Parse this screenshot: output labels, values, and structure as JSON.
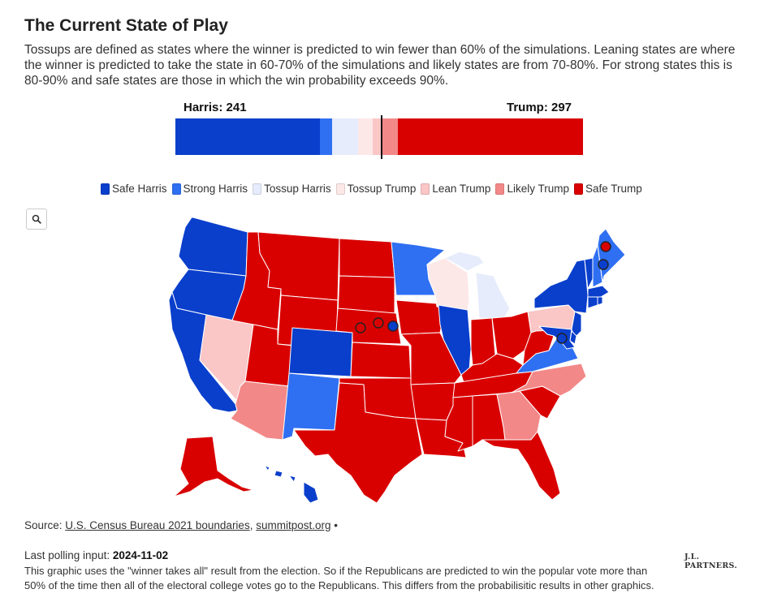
{
  "title": "The Current State of Play",
  "description": "Tossups are defined as states where the winner is predicted to win fewer than 60% of the simulations. Leaning states are where the winner is predicted to take the state in 60-70% of the simulations and likely states are from 70-80%. For strong states this is 80-90% and safe states are those in which the win probability exceeds 90%.",
  "tally": {
    "harris": "Harris: 241",
    "trump": "Trump: 297"
  },
  "colors": {
    "safe_harris": "#0a3fcc",
    "strong_harris": "#2f6ff2",
    "tossup_harris": "#e6ecfb",
    "tossup_trump": "#fde8e8",
    "lean_trump": "#fbc6c6",
    "likely_trump": "#f38888",
    "safe_trump": "#d90000"
  },
  "bar_segments": [
    {
      "category": "Safe Harris",
      "votes": 191,
      "color": "#0a3fcc"
    },
    {
      "category": "Strong Harris",
      "votes": 16,
      "color": "#2f6ff2"
    },
    {
      "category": "Tossup Harris",
      "votes": 34,
      "color": "#e6ecfb"
    },
    {
      "category": "Tossup Trump",
      "votes": 19,
      "color": "#fde8e8"
    },
    {
      "category": "Lean Trump",
      "votes": 12,
      "color": "#fbc6c6"
    },
    {
      "category": "Likely Trump",
      "votes": 22,
      "color": "#f38888"
    },
    {
      "category": "Safe Trump",
      "votes": 244,
      "color": "#d90000"
    }
  ],
  "legend": [
    {
      "label": "Safe Harris",
      "color": "#0a3fcc"
    },
    {
      "label": "Strong Harris",
      "color": "#2f6ff2"
    },
    {
      "label": "Tossup Harris",
      "color": "#e6ecfb"
    },
    {
      "label": "Tossup Trump",
      "color": "#fde8e8"
    },
    {
      "label": "Lean Trump",
      "color": "#fbc6c6"
    },
    {
      "label": "Likely Trump",
      "color": "#f38888"
    },
    {
      "label": "Safe Trump",
      "color": "#d90000"
    }
  ],
  "search_icon": "search-icon",
  "states": {
    "WA": "safe_harris",
    "OR": "safe_harris",
    "CA": "safe_harris",
    "NV": "lean_trump",
    "ID": "safe_trump",
    "MT": "safe_trump",
    "WY": "safe_trump",
    "UT": "safe_trump",
    "AZ": "likely_trump",
    "CO": "safe_harris",
    "NM": "strong_harris",
    "ND": "safe_trump",
    "SD": "safe_trump",
    "NE": "safe_trump",
    "KS": "safe_trump",
    "OK": "safe_trump",
    "TX": "safe_trump",
    "MN": "strong_harris",
    "IA": "safe_trump",
    "MO": "safe_trump",
    "AR": "safe_trump",
    "LA": "safe_trump",
    "WI": "tossup_trump",
    "IL": "safe_harris",
    "MI": "tossup_harris",
    "IN": "safe_trump",
    "OH": "safe_trump",
    "KY": "safe_trump",
    "TN": "safe_trump",
    "MS": "safe_trump",
    "AL": "safe_trump",
    "GA": "likely_trump",
    "FL": "safe_trump",
    "SC": "safe_trump",
    "NC": "likely_trump",
    "VA": "strong_harris",
    "WV": "safe_trump",
    "PA": "lean_trump",
    "NY": "safe_harris",
    "VT": "safe_harris",
    "NH": "strong_harris",
    "ME": "strong_harris",
    "MA": "safe_harris",
    "CT": "safe_harris",
    "RI": "safe_harris",
    "NJ": "safe_harris",
    "DE": "safe_harris",
    "MD": "safe_harris",
    "AK": "safe_trump",
    "HI": "safe_harris"
  },
  "districts": [
    {
      "id": "NE-1",
      "color": "safe_trump"
    },
    {
      "id": "NE-2",
      "color": "safe_harris"
    },
    {
      "id": "NE-3",
      "color": "safe_trump"
    },
    {
      "id": "ME-1",
      "color": "safe_harris"
    },
    {
      "id": "ME-2",
      "color": "safe_trump"
    },
    {
      "id": "DC",
      "color": "safe_harris"
    }
  ],
  "source": {
    "prefix": "Source:",
    "link1": "U.S. Census Bureau 2021 boundaries",
    "sep": ",",
    "link2": "summitpost.org",
    "suffix": "•"
  },
  "polling": {
    "label": "Last polling input:",
    "date": "2024-11-02"
  },
  "note": "This graphic uses the \"winner takes all\" result from the election. So if the Republicans are predicted to win the popular vote more than 50% of the time then all of the electoral college votes go to the Republicans. This differs from the probabilisitic results in other graphics.",
  "logo": {
    "line1": "J.L.",
    "line2": "PARTNERS."
  }
}
